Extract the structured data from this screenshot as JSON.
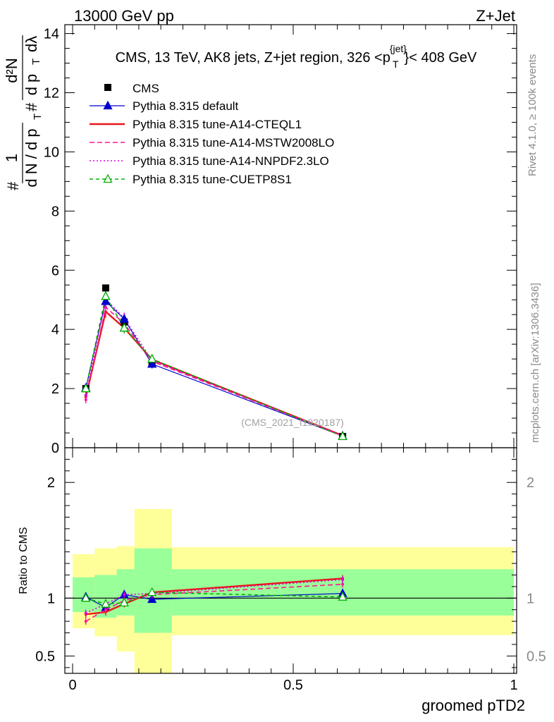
{
  "header": {
    "left": "13000 GeV pp",
    "right": "Z+Jet"
  },
  "side_labels": {
    "rivet": "Rivet 4.1.0, ≥ 100k events",
    "mcplots": "mcplots.cern.ch [arXiv:1306.3436]"
  },
  "watermark": "(CMS_2021_I1920187)",
  "chart_data": {
    "type": "line",
    "title_parts": {
      "pre": "CMS, 13 TeV, AK8 jets, Z+jet region, 326 <p",
      "sup": "{jet}",
      "sub": "T",
      "post": "}< 408 GeV"
    },
    "ylabel_main": {
      "numerator": "1",
      "denominator": "d N / d p",
      "prefix": "#",
      "right_numerator": "d²N",
      "right_denominator": "d p",
      "hash2": "#",
      "lambda": "dλ",
      "sub_t": "T"
    },
    "xlabel": "groomed pTD2",
    "ratio_ylabel": "Ratio to CMS",
    "xlim": [
      0,
      1
    ],
    "ylim_main": [
      0,
      14.3
    ],
    "ylim_ratio": [
      0.35,
      2.3
    ],
    "x_ticks": [
      0,
      0.5,
      1
    ],
    "x_tick_labels": [
      "0",
      "0.5",
      "1"
    ],
    "y_ticks_main": [
      0,
      2,
      4,
      6,
      8,
      10,
      12,
      14
    ],
    "y_tick_labels_main": [
      "0",
      "2",
      "4",
      "6",
      "8",
      "10",
      "12",
      "14"
    ],
    "y_ticks_ratio": [
      0.5,
      1,
      2
    ],
    "y_tick_labels_ratio": [
      "0.5",
      "1",
      "2"
    ],
    "bin_edges": [
      0,
      0.05,
      0.1,
      0.14,
      0.225,
      1.0
    ],
    "x": [
      0.03,
      0.075,
      0.117,
      0.18,
      0.612
    ],
    "data": {
      "name": "CMS",
      "values": [
        2.0,
        5.4,
        4.25,
        2.85,
        0.38
      ],
      "errors": [
        0.08,
        0.12,
        0.12,
        0.08,
        0.03
      ]
    },
    "series": [
      {
        "name": "Pythia 8.315 default",
        "color": "#0000cc",
        "style": "solid",
        "marker": "triangle-filled",
        "values": [
          2.02,
          4.95,
          4.35,
          2.83,
          0.395
        ],
        "ratio": [
          1.01,
          0.92,
          1.03,
          0.99,
          1.04
        ]
      },
      {
        "name": "Pythia 8.315 tune-A14-CTEQL1",
        "color": "#e8161a",
        "style": "solid-thick",
        "marker": "none",
        "values": [
          1.72,
          4.6,
          4.05,
          2.98,
          0.41
        ],
        "ratio": [
          0.86,
          0.88,
          0.95,
          1.05,
          1.17
        ]
      },
      {
        "name": "Pythia 8.315 tune-A14-MSTW2008LO",
        "color": "#ff1493",
        "style": "dashed",
        "marker": "none",
        "values": [
          1.62,
          4.75,
          4.2,
          2.92,
          0.4
        ],
        "ratio": [
          0.8,
          0.9,
          0.98,
          1.03,
          1.12
        ]
      },
      {
        "name": "Pythia 8.315 tune-A14-NNPDF2.3LO",
        "color": "#dd00dd",
        "style": "dotted",
        "marker": "none",
        "values": [
          1.78,
          5.02,
          4.38,
          2.95,
          0.41
        ],
        "ratio": [
          0.87,
          0.95,
          1.03,
          1.04,
          1.16
        ]
      },
      {
        "name": "Pythia 8.315 tune-CUETP8S1",
        "color": "#00b000",
        "style": "dashed-thin",
        "marker": "triangle-open",
        "values": [
          2.0,
          5.12,
          4.05,
          3.0,
          0.385
        ],
        "ratio": [
          1.0,
          0.95,
          0.96,
          1.05,
          1.01
        ]
      }
    ],
    "uncertainty_bands": {
      "green": [
        [
          0.88,
          1.18
        ],
        [
          0.83,
          1.2
        ],
        [
          0.85,
          1.25
        ],
        [
          0.7,
          1.43
        ],
        [
          0.85,
          1.25
        ]
      ],
      "yellow": [
        [
          0.74,
          1.38
        ],
        [
          0.67,
          1.43
        ],
        [
          0.54,
          1.45
        ],
        [
          0.35,
          1.77
        ],
        [
          0.68,
          1.44
        ]
      ]
    },
    "legend": {
      "position": "top-left"
    }
  }
}
